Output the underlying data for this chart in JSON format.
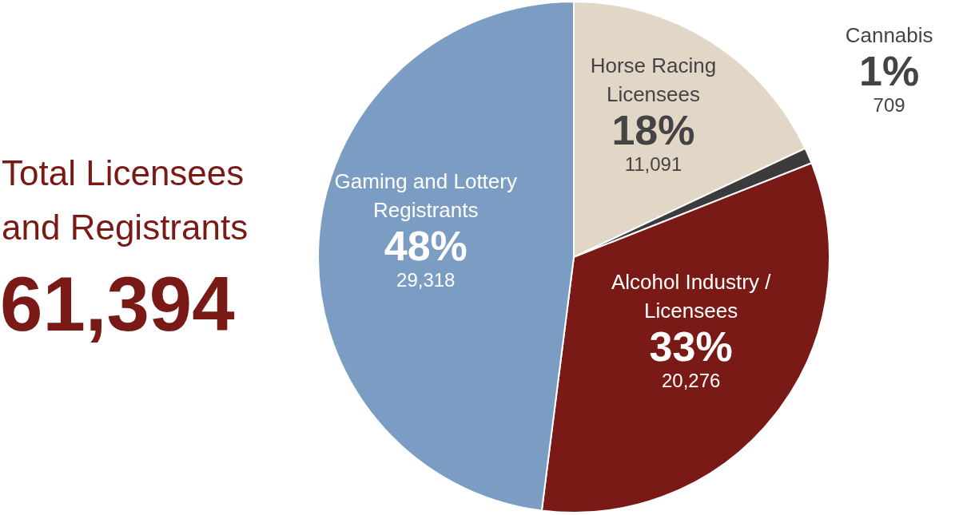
{
  "chart_data": {
    "type": "pie",
    "title": "Total Licensees and Registrants",
    "subtitle": "61,394",
    "categories": [
      "Horse Racing Licensees",
      "Cannabis",
      "Alcohol Industry / Licensees",
      "Gaming and Lottery Registrants"
    ],
    "values": [
      18,
      1,
      33,
      48
    ],
    "colors": [
      "#e2d6c6",
      "#3b3b3b",
      "#7a1a16",
      "#7b9dc3"
    ],
    "value_labels": [
      "18%",
      "1%",
      "33%",
      "48%"
    ],
    "annotations": [
      {
        "text": "11,091",
        "x": "Horse Racing Licensees"
      },
      {
        "text": "709",
        "x": "Cannabis"
      },
      {
        "text": "20,276",
        "x": "Alcohol Industry / Licensees"
      },
      {
        "text": "29,318",
        "x": "Gaming and Lottery Registrants"
      }
    ]
  }
}
